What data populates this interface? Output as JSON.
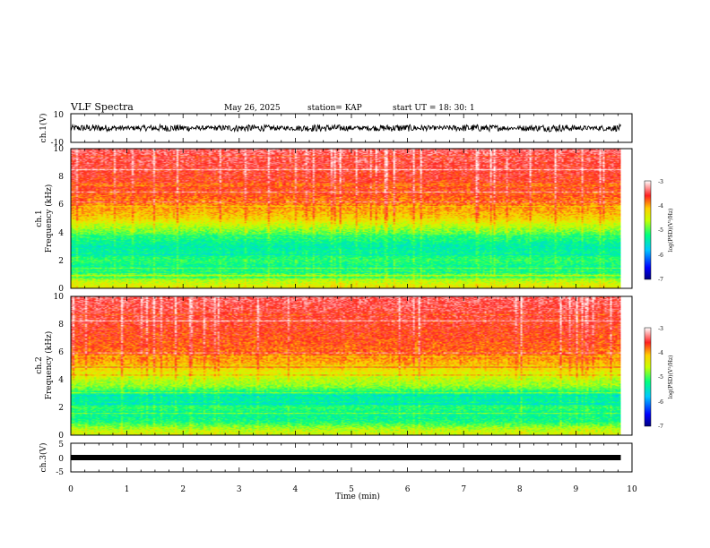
{
  "header": {
    "title": "VLF Spectra",
    "date": "May 26, 2025",
    "station": "station= KAP",
    "start": "start  UT =   18: 30: 1"
  },
  "chart_data": [
    {
      "type": "line",
      "panel": "ch1-waveform",
      "ylabel": "ch.1(V)",
      "ylim": [
        -10,
        10
      ],
      "ytick_labels": [
        "10",
        "-10"
      ],
      "xlim": [
        0,
        10
      ],
      "data_end_min": 9.8,
      "amplitude_band": [
        -2.5,
        2.5
      ],
      "color": "#000000"
    },
    {
      "type": "heatmap",
      "panel": "ch1-spectrogram",
      "ylabel_top": "ch.1",
      "ylabel": "Frequency  (kHz)",
      "ylim": [
        0,
        10
      ],
      "ytick_labels": [
        "0",
        "2",
        "4",
        "6",
        "8",
        "10"
      ],
      "xlim": [
        0,
        10
      ],
      "data_end_min": 9.8,
      "colorbar": {
        "label": "log(PSD)(V²/Hz)",
        "range": [
          -7,
          -3
        ],
        "tick_labels": [
          "-3",
          "-4",
          "-5",
          "-6",
          "-7"
        ]
      },
      "level_profile": [
        {
          "f_khz": 0.0,
          "log_psd": -4.3
        },
        {
          "f_khz": 0.5,
          "log_psd": -4.6
        },
        {
          "f_khz": 1.0,
          "log_psd": -5.0
        },
        {
          "f_khz": 1.5,
          "log_psd": -5.3
        },
        {
          "f_khz": 2.0,
          "log_psd": -5.1
        },
        {
          "f_khz": 2.5,
          "log_psd": -5.3
        },
        {
          "f_khz": 3.0,
          "log_psd": -5.4
        },
        {
          "f_khz": 3.5,
          "log_psd": -5.2
        },
        {
          "f_khz": 4.0,
          "log_psd": -4.9
        },
        {
          "f_khz": 4.5,
          "log_psd": -4.6
        },
        {
          "f_khz": 5.0,
          "log_psd": -4.2
        },
        {
          "f_khz": 6.0,
          "log_psd": -3.9
        },
        {
          "f_khz": 7.0,
          "log_psd": -3.7
        },
        {
          "f_khz": 8.0,
          "log_psd": -3.6
        },
        {
          "f_khz": 10.0,
          "log_psd": -3.4
        }
      ]
    },
    {
      "type": "heatmap",
      "panel": "ch2-spectrogram",
      "ylabel_top": "ch.2",
      "ylabel": "Frequency  (kHz)",
      "ylim": [
        0,
        10
      ],
      "ytick_labels": [
        "0",
        "2",
        "4",
        "6",
        "8",
        "10"
      ],
      "xlim": [
        0,
        10
      ],
      "data_end_min": 9.8,
      "colorbar": {
        "label": "log(PSD)(V²/Hz)",
        "range": [
          -7,
          -3
        ],
        "tick_labels": [
          "-3",
          "-4",
          "-5",
          "-6",
          "-7"
        ]
      },
      "level_profile": [
        {
          "f_khz": 0.0,
          "log_psd": -4.4
        },
        {
          "f_khz": 0.5,
          "log_psd": -4.7
        },
        {
          "f_khz": 1.0,
          "log_psd": -5.2
        },
        {
          "f_khz": 1.5,
          "log_psd": -5.3
        },
        {
          "f_khz": 2.0,
          "log_psd": -5.1
        },
        {
          "f_khz": 2.5,
          "log_psd": -5.4
        },
        {
          "f_khz": 3.0,
          "log_psd": -5.3
        },
        {
          "f_khz": 3.5,
          "log_psd": -4.8
        },
        {
          "f_khz": 4.0,
          "log_psd": -4.6
        },
        {
          "f_khz": 4.5,
          "log_psd": -4.4
        },
        {
          "f_khz": 5.0,
          "log_psd": -4.1
        },
        {
          "f_khz": 6.0,
          "log_psd": -3.8
        },
        {
          "f_khz": 7.0,
          "log_psd": -3.7
        },
        {
          "f_khz": 8.0,
          "log_psd": -3.6
        },
        {
          "f_khz": 10.0,
          "log_psd": -3.4
        }
      ]
    },
    {
      "type": "line",
      "panel": "ch3-waveform",
      "ylabel": "ch.3(V)",
      "ylim": [
        -5,
        5
      ],
      "ytick_labels": [
        "5",
        "0",
        "-5"
      ],
      "xlim": [
        0,
        10
      ],
      "data_end_min": 9.8,
      "level_v": 0,
      "color": "#000000"
    }
  ],
  "x_axis": {
    "label": "Time  (min)",
    "range": [
      0,
      10
    ],
    "tick_labels": [
      "0",
      "1",
      "2",
      "3",
      "4",
      "5",
      "6",
      "7",
      "8",
      "9",
      "10"
    ]
  }
}
